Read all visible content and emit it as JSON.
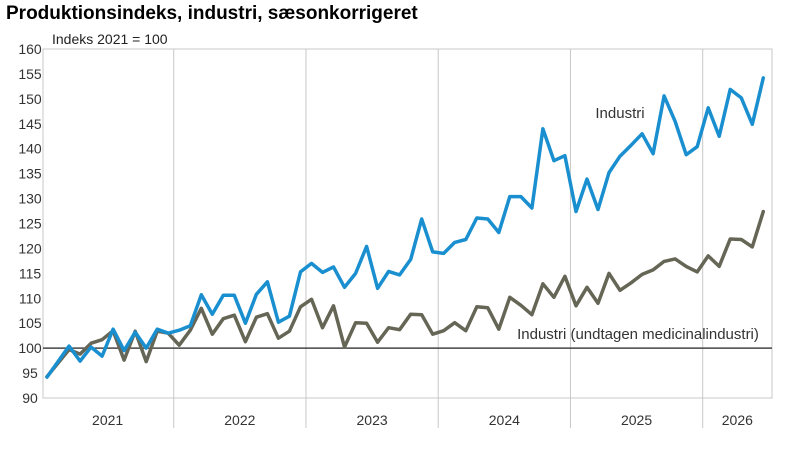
{
  "chart_data": {
    "type": "line",
    "title": "Produktionsindeks, industri, sæsonkorrigeret",
    "subtitle": "Indeks 2021 = 100",
    "xlabel": "",
    "ylabel": "",
    "ylim": [
      90,
      160
    ],
    "yticks": [
      90,
      95,
      100,
      105,
      110,
      115,
      120,
      125,
      130,
      135,
      140,
      145,
      150,
      155,
      160
    ],
    "year_labels": [
      "2021",
      "2022",
      "2023",
      "2024",
      "2025",
      "2026"
    ],
    "reference_line": 100,
    "grid": "vertical year dividers",
    "series": [
      {
        "name": "Industri",
        "color": "#1a8fd0",
        "values": [
          94.2,
          97.3,
          100.4,
          97.4,
          100.2,
          98.4,
          103.8,
          99.5,
          103.2,
          100.0,
          103.8,
          103.0,
          103.6,
          104.5,
          110.7,
          106.8,
          110.6,
          110.6,
          105.0,
          110.8,
          113.3,
          105.2,
          106.4,
          115.3,
          117.0,
          115.2,
          116.3,
          112.2,
          115.0,
          120.4,
          112.0,
          115.4,
          114.7,
          117.8,
          125.9,
          119.3,
          119.0,
          121.2,
          121.8,
          126.1,
          125.9,
          123.2,
          130.4,
          130.4,
          128.1,
          144.0,
          137.6,
          138.6,
          127.4,
          133.9,
          127.8,
          135.2,
          138.5,
          140.7,
          143.0,
          139.0,
          150.6,
          145.5,
          138.8,
          140.4,
          148.2,
          142.5,
          151.9,
          150.2,
          144.9,
          154.2
        ]
      },
      {
        "name": "Industri (undtagen medicinalindustri)",
        "color": "#666656",
        "values": [
          94.3,
          97.0,
          99.7,
          98.8,
          101.0,
          101.7,
          103.5,
          97.6,
          103.4,
          97.3,
          103.4,
          103.0,
          100.6,
          103.6,
          108.0,
          102.8,
          105.9,
          106.6,
          101.3,
          106.2,
          106.9,
          102.0,
          103.4,
          108.3,
          109.8,
          104.1,
          108.5,
          100.2,
          105.1,
          105.0,
          101.2,
          104.1,
          103.7,
          106.8,
          106.7,
          102.8,
          103.5,
          105.1,
          103.5,
          108.3,
          108.1,
          103.8,
          110.2,
          108.6,
          106.7,
          112.9,
          110.2,
          114.4,
          108.5,
          112.2,
          109.0,
          115.0,
          111.6,
          113.1,
          114.8,
          115.7,
          117.4,
          117.9,
          116.4,
          115.3,
          118.5,
          116.4,
          121.9,
          121.8,
          120.3,
          127.4
        ]
      }
    ],
    "annotations": [
      {
        "text": "Industri",
        "series": 0
      },
      {
        "text": "Industri (undtagen medicinalindustri)",
        "series": 1
      }
    ]
  }
}
